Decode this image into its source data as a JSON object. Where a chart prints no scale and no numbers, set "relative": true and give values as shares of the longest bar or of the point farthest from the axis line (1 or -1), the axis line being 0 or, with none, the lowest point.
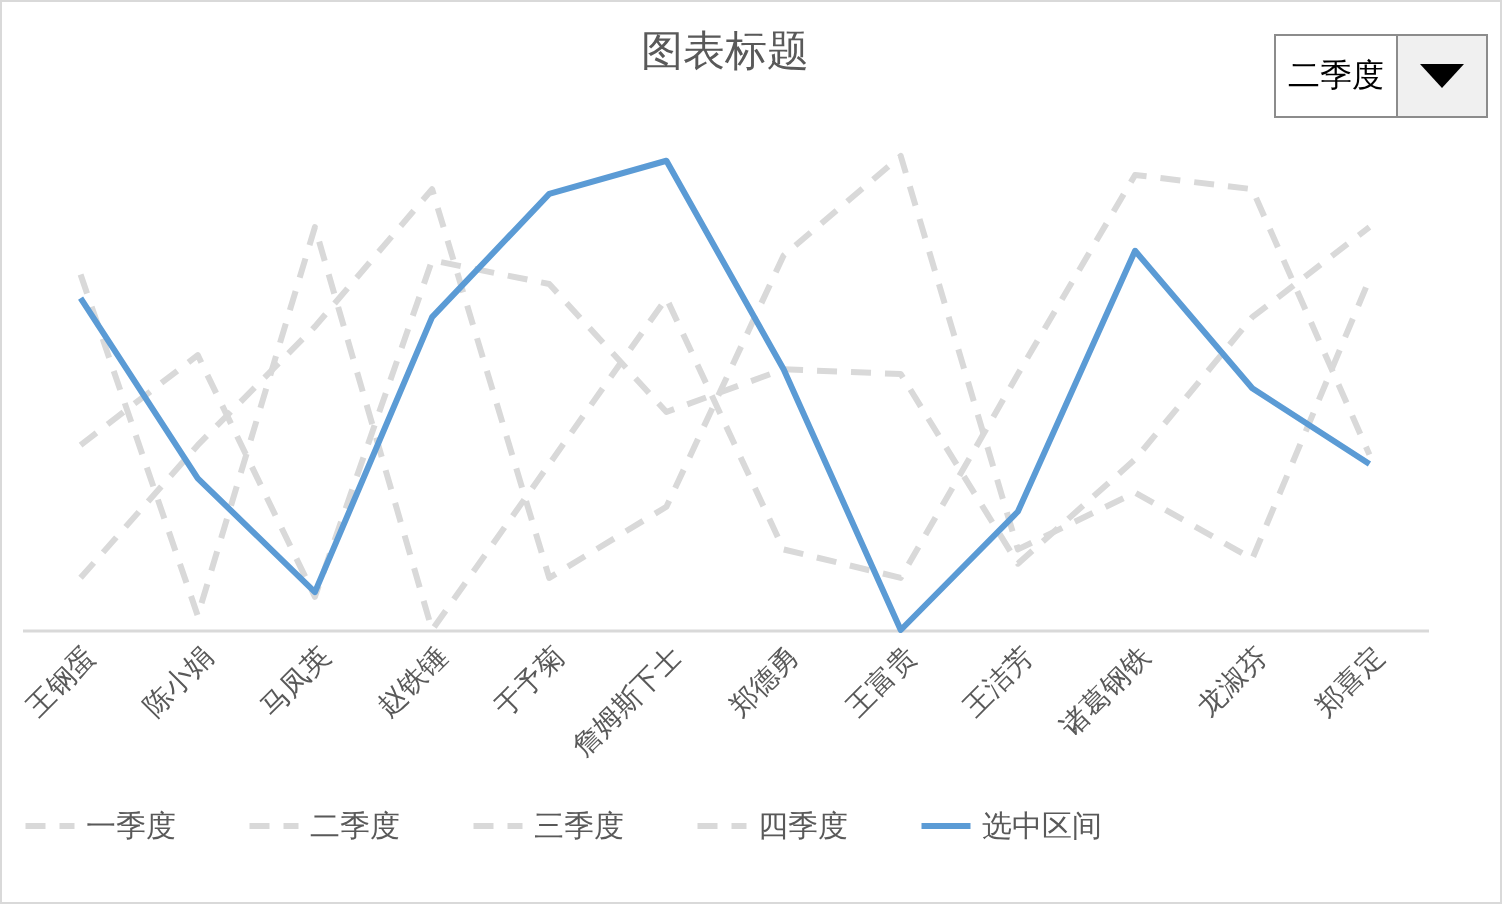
{
  "chart_data": {
    "type": "line",
    "title": "图表标题",
    "relative": true,
    "legend": "bottom",
    "annotations": [
      "二季度"
    ],
    "categories": [
      "王钢蛋",
      "陈小娟",
      "马凤英",
      "赵铁锤",
      "于予菊",
      "詹姆斯下士",
      "郑德勇",
      "王富贵",
      "王洁芳",
      "诸葛钢铁",
      "龙淑芬",
      "郑喜定"
    ],
    "series": [
      {
        "name": "一季度",
        "color": "#d9d9d9",
        "line_style": "dashed",
        "values": [
          0.75,
          0.03,
          0.85,
          0,
          0.35,
          0.7,
          0.17,
          0.11,
          0.54,
          0.96,
          0.93,
          0.37
        ]
      },
      {
        "name": "二季度",
        "color": "#d9d9d9",
        "line_style": "dashed",
        "values": [
          null,
          null,
          null,
          null,
          null,
          null,
          null,
          null,
          null,
          null,
          null,
          null
        ]
      },
      {
        "name": "三季度",
        "color": "#d9d9d9",
        "line_style": "dashed",
        "values": [
          0.39,
          0.58,
          0.07,
          0.78,
          0.73,
          0.46,
          0.55,
          0.54,
          0.14,
          0.36,
          0.66,
          0.85
        ]
      },
      {
        "name": "四季度",
        "color": "#d9d9d9",
        "line_style": "dashed",
        "values": [
          0.11,
          0.39,
          0.64,
          0.93,
          0.11,
          0.26,
          0.79,
          1,
          0.17,
          0.29,
          0.15,
          0.74
        ]
      },
      {
        "name": "选中区间",
        "color": "#5b9bd5",
        "line_style": "solid",
        "values": [
          0.7,
          0.32,
          0.08,
          0.66,
          0.92,
          0.99,
          0.55,
          0,
          0.25,
          0.8,
          0.51,
          0.35
        ]
      }
    ]
  }
}
